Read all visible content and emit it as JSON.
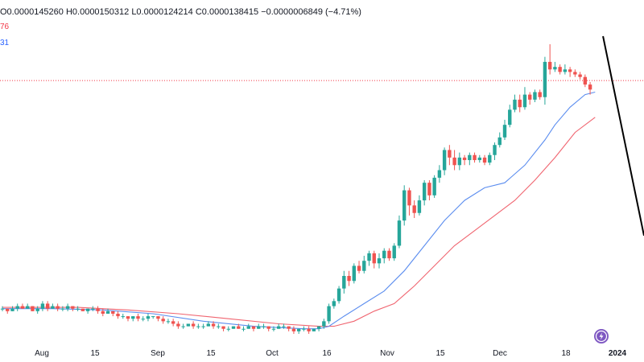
{
  "header": {
    "ohlc_text": "O0.0000145260 H0.0000150312 L0.0000124214 C0.0000138415 −0.0000006849 (−4.71%)",
    "ma_labels": [
      {
        "text": "76",
        "color": "#f23645"
      },
      {
        "text": "31",
        "color": "#2962ff"
      }
    ]
  },
  "chart_data": {
    "type": "candlestick",
    "x_ticks": [
      "Aug",
      "15",
      "Sep",
      "15",
      "Oct",
      "16",
      "Nov",
      "15",
      "Dec",
      "18",
      "2024"
    ],
    "current_price_line": true,
    "colors": {
      "up": "#26a69a",
      "down": "#ef5350",
      "ma_fast": "#5b8def",
      "ma_slow": "#f06570",
      "trend_line": "#000000",
      "price_line": "#f23645"
    },
    "candles": [
      [
        0.05,
        0.05,
        0.06,
        0.04
      ],
      [
        0.05,
        0.04,
        0.05,
        0.03
      ],
      [
        0.04,
        0.05,
        0.06,
        0.04
      ],
      [
        0.05,
        0.06,
        0.07,
        0.04
      ],
      [
        0.06,
        0.05,
        0.07,
        0.05
      ],
      [
        0.05,
        0.06,
        0.07,
        0.05
      ],
      [
        0.06,
        0.04,
        0.06,
        0.04
      ],
      [
        0.04,
        0.05,
        0.06,
        0.03
      ],
      [
        0.05,
        0.07,
        0.08,
        0.04
      ],
      [
        0.07,
        0.05,
        0.08,
        0.04
      ],
      [
        0.05,
        0.06,
        0.07,
        0.05
      ],
      [
        0.06,
        0.05,
        0.07,
        0.04
      ],
      [
        0.05,
        0.05,
        0.06,
        0.04
      ],
      [
        0.05,
        0.06,
        0.07,
        0.04
      ],
      [
        0.06,
        0.05,
        0.06,
        0.04
      ],
      [
        0.05,
        0.05,
        0.06,
        0.04
      ],
      [
        0.05,
        0.04,
        0.05,
        0.04
      ],
      [
        0.04,
        0.05,
        0.05,
        0.03
      ],
      [
        0.05,
        0.05,
        0.06,
        0.04
      ],
      [
        0.05,
        0.04,
        0.06,
        0.03
      ],
      [
        0.04,
        0.03,
        0.05,
        0.02
      ],
      [
        0.03,
        0.04,
        0.05,
        0.03
      ],
      [
        0.04,
        0.03,
        0.04,
        0.02
      ],
      [
        0.03,
        0.02,
        0.04,
        0.01
      ],
      [
        0.02,
        0.02,
        0.03,
        0.01
      ],
      [
        0.02,
        0.01,
        0.02,
        0.0
      ],
      [
        0.01,
        0.02,
        0.02,
        0.0
      ],
      [
        0.02,
        0.01,
        0.03,
        0.0
      ],
      [
        0.01,
        0.01,
        0.02,
        0.0
      ],
      [
        0.01,
        0.02,
        0.03,
        0.0
      ],
      [
        0.02,
        0.02,
        0.02,
        0.01
      ],
      [
        0.02,
        0.01,
        0.02,
        0.0
      ],
      [
        0.01,
        0.0,
        0.02,
        -0.01
      ],
      [
        0.0,
        0.0,
        0.01,
        -0.01
      ],
      [
        0.0,
        -0.01,
        0.01,
        -0.02
      ],
      [
        -0.01,
        -0.02,
        0.0,
        -0.03
      ],
      [
        -0.02,
        -0.02,
        -0.01,
        -0.03
      ],
      [
        -0.02,
        -0.01,
        -0.01,
        -0.02
      ],
      [
        -0.01,
        -0.02,
        0.0,
        -0.03
      ],
      [
        -0.02,
        -0.02,
        -0.01,
        -0.03
      ],
      [
        -0.02,
        -0.02,
        -0.01,
        -0.03
      ],
      [
        -0.02,
        -0.01,
        0.0,
        -0.02
      ],
      [
        -0.01,
        -0.02,
        0.0,
        -0.03
      ],
      [
        -0.02,
        -0.02,
        -0.01,
        -0.03
      ],
      [
        -0.02,
        -0.03,
        -0.02,
        -0.04
      ],
      [
        -0.03,
        -0.03,
        -0.02,
        -0.04
      ],
      [
        -0.03,
        -0.02,
        -0.02,
        -0.03
      ],
      [
        -0.02,
        -0.03,
        -0.01,
        -0.03
      ],
      [
        -0.03,
        -0.03,
        -0.02,
        -0.04
      ],
      [
        -0.03,
        -0.02,
        -0.01,
        -0.03
      ],
      [
        -0.02,
        -0.03,
        -0.02,
        -0.04
      ],
      [
        -0.03,
        -0.02,
        -0.01,
        -0.03
      ],
      [
        -0.02,
        -0.02,
        -0.01,
        -0.03
      ],
      [
        -0.02,
        -0.03,
        -0.02,
        -0.04
      ],
      [
        -0.03,
        -0.03,
        -0.02,
        -0.04
      ],
      [
        -0.03,
        -0.02,
        -0.01,
        -0.03
      ],
      [
        -0.02,
        -0.02,
        -0.01,
        -0.03
      ],
      [
        -0.02,
        -0.03,
        -0.02,
        -0.04
      ],
      [
        -0.03,
        -0.04,
        -0.02,
        -0.05
      ],
      [
        -0.04,
        -0.03,
        -0.03,
        -0.05
      ],
      [
        -0.03,
        -0.03,
        -0.02,
        -0.04
      ],
      [
        -0.03,
        -0.04,
        -0.02,
        -0.05
      ],
      [
        -0.04,
        -0.03,
        -0.03,
        -0.04
      ],
      [
        -0.03,
        -0.02,
        -0.02,
        -0.04
      ],
      [
        -0.02,
        0.0,
        0.01,
        -0.03
      ],
      [
        0.0,
        0.06,
        0.07,
        -0.01
      ],
      [
        0.06,
        0.08,
        0.09,
        0.05
      ],
      [
        0.08,
        0.13,
        0.14,
        0.07
      ],
      [
        0.13,
        0.18,
        0.2,
        0.11
      ],
      [
        0.18,
        0.16,
        0.2,
        0.14
      ],
      [
        0.16,
        0.22,
        0.23,
        0.15
      ],
      [
        0.22,
        0.2,
        0.24,
        0.19
      ],
      [
        0.2,
        0.24,
        0.26,
        0.19
      ],
      [
        0.24,
        0.27,
        0.28,
        0.22
      ],
      [
        0.27,
        0.23,
        0.28,
        0.21
      ],
      [
        0.23,
        0.25,
        0.27,
        0.21
      ],
      [
        0.25,
        0.28,
        0.29,
        0.23
      ],
      [
        0.28,
        0.25,
        0.29,
        0.24
      ],
      [
        0.25,
        0.3,
        0.31,
        0.24
      ],
      [
        0.3,
        0.4,
        0.42,
        0.29
      ],
      [
        0.4,
        0.52,
        0.54,
        0.38
      ],
      [
        0.52,
        0.46,
        0.53,
        0.42
      ],
      [
        0.46,
        0.43,
        0.48,
        0.41
      ],
      [
        0.43,
        0.48,
        0.5,
        0.42
      ],
      [
        0.48,
        0.55,
        0.56,
        0.46
      ],
      [
        0.55,
        0.5,
        0.56,
        0.48
      ],
      [
        0.5,
        0.57,
        0.58,
        0.49
      ],
      [
        0.57,
        0.6,
        0.62,
        0.55
      ],
      [
        0.6,
        0.68,
        0.69,
        0.58
      ],
      [
        0.68,
        0.65,
        0.7,
        0.62
      ],
      [
        0.65,
        0.62,
        0.68,
        0.6
      ],
      [
        0.62,
        0.65,
        0.67,
        0.6
      ],
      [
        0.65,
        0.64,
        0.66,
        0.62
      ],
      [
        0.64,
        0.66,
        0.67,
        0.62
      ],
      [
        0.66,
        0.64,
        0.67,
        0.63
      ],
      [
        0.64,
        0.65,
        0.66,
        0.63
      ],
      [
        0.65,
        0.63,
        0.66,
        0.62
      ],
      [
        0.63,
        0.66,
        0.67,
        0.62
      ],
      [
        0.66,
        0.7,
        0.71,
        0.64
      ],
      [
        0.7,
        0.73,
        0.75,
        0.69
      ],
      [
        0.73,
        0.78,
        0.8,
        0.72
      ],
      [
        0.78,
        0.84,
        0.86,
        0.77
      ],
      [
        0.84,
        0.88,
        0.9,
        0.83
      ],
      [
        0.88,
        0.85,
        0.9,
        0.83
      ],
      [
        0.85,
        0.9,
        0.93,
        0.84
      ],
      [
        0.9,
        0.88,
        0.91,
        0.86
      ],
      [
        0.88,
        0.91,
        0.92,
        0.87
      ],
      [
        0.91,
        0.89,
        0.92,
        0.88
      ],
      [
        0.89,
        1.03,
        1.05,
        0.86
      ],
      [
        1.03,
        1.0,
        1.1,
        0.98
      ],
      [
        1.0,
        1.01,
        1.03,
        0.99
      ],
      [
        1.01,
        0.99,
        1.02,
        0.98
      ],
      [
        0.99,
        1.0,
        1.02,
        0.98
      ],
      [
        1.0,
        0.99,
        1.01,
        0.97
      ],
      [
        0.99,
        0.98,
        1.0,
        0.97
      ],
      [
        0.98,
        0.97,
        0.99,
        0.96
      ],
      [
        0.97,
        0.94,
        0.98,
        0.93
      ],
      [
        0.94,
        0.92,
        0.95,
        0.9
      ]
    ],
    "ma_fast": [
      [
        0,
        0.05
      ],
      [
        10,
        0.05
      ],
      [
        20,
        0.045
      ],
      [
        30,
        0.03
      ],
      [
        40,
        0.0
      ],
      [
        50,
        -0.02
      ],
      [
        55,
        -0.025
      ],
      [
        60,
        -0.03
      ],
      [
        63,
        -0.03
      ],
      [
        65,
        -0.02
      ],
      [
        68,
        0.02
      ],
      [
        72,
        0.07
      ],
      [
        76,
        0.12
      ],
      [
        80,
        0.2
      ],
      [
        84,
        0.3
      ],
      [
        88,
        0.4
      ],
      [
        92,
        0.48
      ],
      [
        96,
        0.53
      ],
      [
        100,
        0.55
      ],
      [
        104,
        0.62
      ],
      [
        108,
        0.72
      ],
      [
        110,
        0.78
      ],
      [
        113,
        0.85
      ],
      [
        116,
        0.9
      ],
      [
        118,
        0.91
      ]
    ],
    "ma_slow": [
      [
        0,
        0.055
      ],
      [
        15,
        0.055
      ],
      [
        25,
        0.045
      ],
      [
        35,
        0.03
      ],
      [
        45,
        0.01
      ],
      [
        55,
        -0.01
      ],
      [
        63,
        -0.02
      ],
      [
        66,
        -0.02
      ],
      [
        70,
        0.0
      ],
      [
        74,
        0.04
      ],
      [
        78,
        0.07
      ],
      [
        82,
        0.14
      ],
      [
        86,
        0.22
      ],
      [
        90,
        0.3
      ],
      [
        94,
        0.36
      ],
      [
        98,
        0.42
      ],
      [
        102,
        0.48
      ],
      [
        106,
        0.56
      ],
      [
        110,
        0.65
      ],
      [
        114,
        0.75
      ],
      [
        118,
        0.81
      ]
    ],
    "trend_line": [
      [
        117,
        1.1
      ],
      [
        125,
        0.34
      ]
    ],
    "current_price": 0.956
  }
}
